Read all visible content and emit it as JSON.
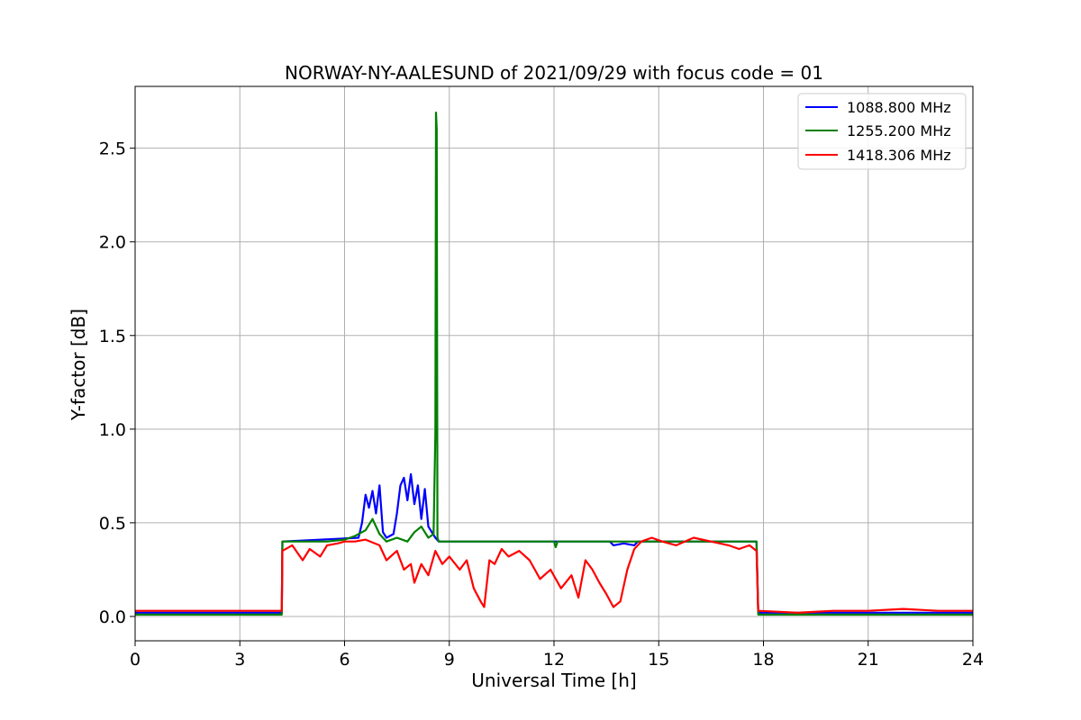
{
  "chart_data": {
    "type": "line",
    "title": "NORWAY-NY-AALESUND of 2021/09/29 with focus code = 01",
    "xlabel": "Universal Time [h]",
    "ylabel": "Y-factor [dB]",
    "xlim": [
      0,
      24
    ],
    "ylim": [
      -0.13,
      2.83
    ],
    "xticks": [
      0,
      3,
      6,
      9,
      12,
      15,
      18,
      21,
      24
    ],
    "yticks": [
      0.0,
      0.5,
      1.0,
      1.5,
      2.0,
      2.5
    ],
    "xtick_labels": [
      "0",
      "3",
      "6",
      "9",
      "12",
      "15",
      "18",
      "21",
      "24"
    ],
    "ytick_labels": [
      "0.0",
      "0.5",
      "1.0",
      "1.5",
      "2.0",
      "2.5"
    ],
    "grid": true,
    "legend_position": "top-right",
    "series": [
      {
        "name": "1088.800 MHz",
        "color": "#0000ff",
        "x": [
          0,
          4.2,
          4.22,
          6.4,
          6.5,
          6.6,
          6.7,
          6.8,
          6.9,
          7.0,
          7.1,
          7.2,
          7.4,
          7.5,
          7.6,
          7.7,
          7.8,
          7.9,
          8.0,
          8.1,
          8.2,
          8.3,
          8.4,
          8.5,
          8.6,
          8.7,
          13.6,
          13.7,
          14.0,
          14.3,
          14.4,
          17.8,
          17.85,
          24
        ],
        "y": [
          0.02,
          0.02,
          0.4,
          0.42,
          0.5,
          0.65,
          0.58,
          0.67,
          0.55,
          0.7,
          0.45,
          0.42,
          0.44,
          0.55,
          0.7,
          0.74,
          0.62,
          0.76,
          0.6,
          0.7,
          0.52,
          0.68,
          0.48,
          0.45,
          0.42,
          0.4,
          0.4,
          0.38,
          0.39,
          0.38,
          0.4,
          0.4,
          0.02,
          0.02
        ]
      },
      {
        "name": "1255.200 MHz",
        "color": "#008000",
        "x": [
          0,
          4.2,
          4.22,
          5.5,
          6.0,
          6.3,
          6.6,
          6.8,
          7.0,
          7.2,
          7.5,
          7.8,
          8.0,
          8.2,
          8.4,
          8.55,
          8.6,
          8.62,
          8.64,
          8.66,
          8.7,
          8.75,
          12.0,
          12.05,
          12.1,
          17.8,
          17.85,
          24
        ],
        "y": [
          0.01,
          0.01,
          0.4,
          0.4,
          0.41,
          0.43,
          0.46,
          0.52,
          0.44,
          0.4,
          0.42,
          0.4,
          0.45,
          0.48,
          0.42,
          0.44,
          0.98,
          2.69,
          2.6,
          0.42,
          0.4,
          0.4,
          0.4,
          0.37,
          0.4,
          0.4,
          0.01,
          0.01
        ]
      },
      {
        "name": "1418.306 MHz",
        "color": "#ff0000",
        "x": [
          0,
          4.2,
          4.22,
          4.5,
          4.8,
          5.0,
          5.3,
          5.5,
          5.8,
          6.0,
          6.3,
          6.6,
          7.0,
          7.2,
          7.5,
          7.7,
          7.9,
          8.0,
          8.2,
          8.4,
          8.6,
          8.8,
          9.0,
          9.3,
          9.5,
          9.7,
          9.9,
          10.0,
          10.15,
          10.3,
          10.5,
          10.7,
          11.0,
          11.3,
          11.6,
          11.9,
          12.2,
          12.5,
          12.7,
          12.9,
          13.1,
          13.3,
          13.5,
          13.7,
          13.9,
          14.1,
          14.3,
          14.5,
          14.8,
          15.1,
          15.5,
          16.0,
          16.5,
          17.0,
          17.3,
          17.6,
          17.8,
          17.85,
          19.0,
          20.0,
          21.0,
          22.0,
          23.0,
          24
        ],
        "y": [
          0.03,
          0.03,
          0.35,
          0.38,
          0.3,
          0.36,
          0.32,
          0.38,
          0.39,
          0.4,
          0.4,
          0.41,
          0.38,
          0.3,
          0.35,
          0.25,
          0.28,
          0.18,
          0.28,
          0.22,
          0.35,
          0.28,
          0.32,
          0.25,
          0.3,
          0.15,
          0.08,
          0.05,
          0.3,
          0.28,
          0.36,
          0.32,
          0.35,
          0.3,
          0.2,
          0.25,
          0.15,
          0.22,
          0.1,
          0.3,
          0.25,
          0.18,
          0.12,
          0.05,
          0.08,
          0.25,
          0.36,
          0.4,
          0.42,
          0.4,
          0.38,
          0.42,
          0.4,
          0.38,
          0.36,
          0.38,
          0.35,
          0.03,
          0.02,
          0.03,
          0.03,
          0.04,
          0.03,
          0.03
        ]
      }
    ]
  }
}
